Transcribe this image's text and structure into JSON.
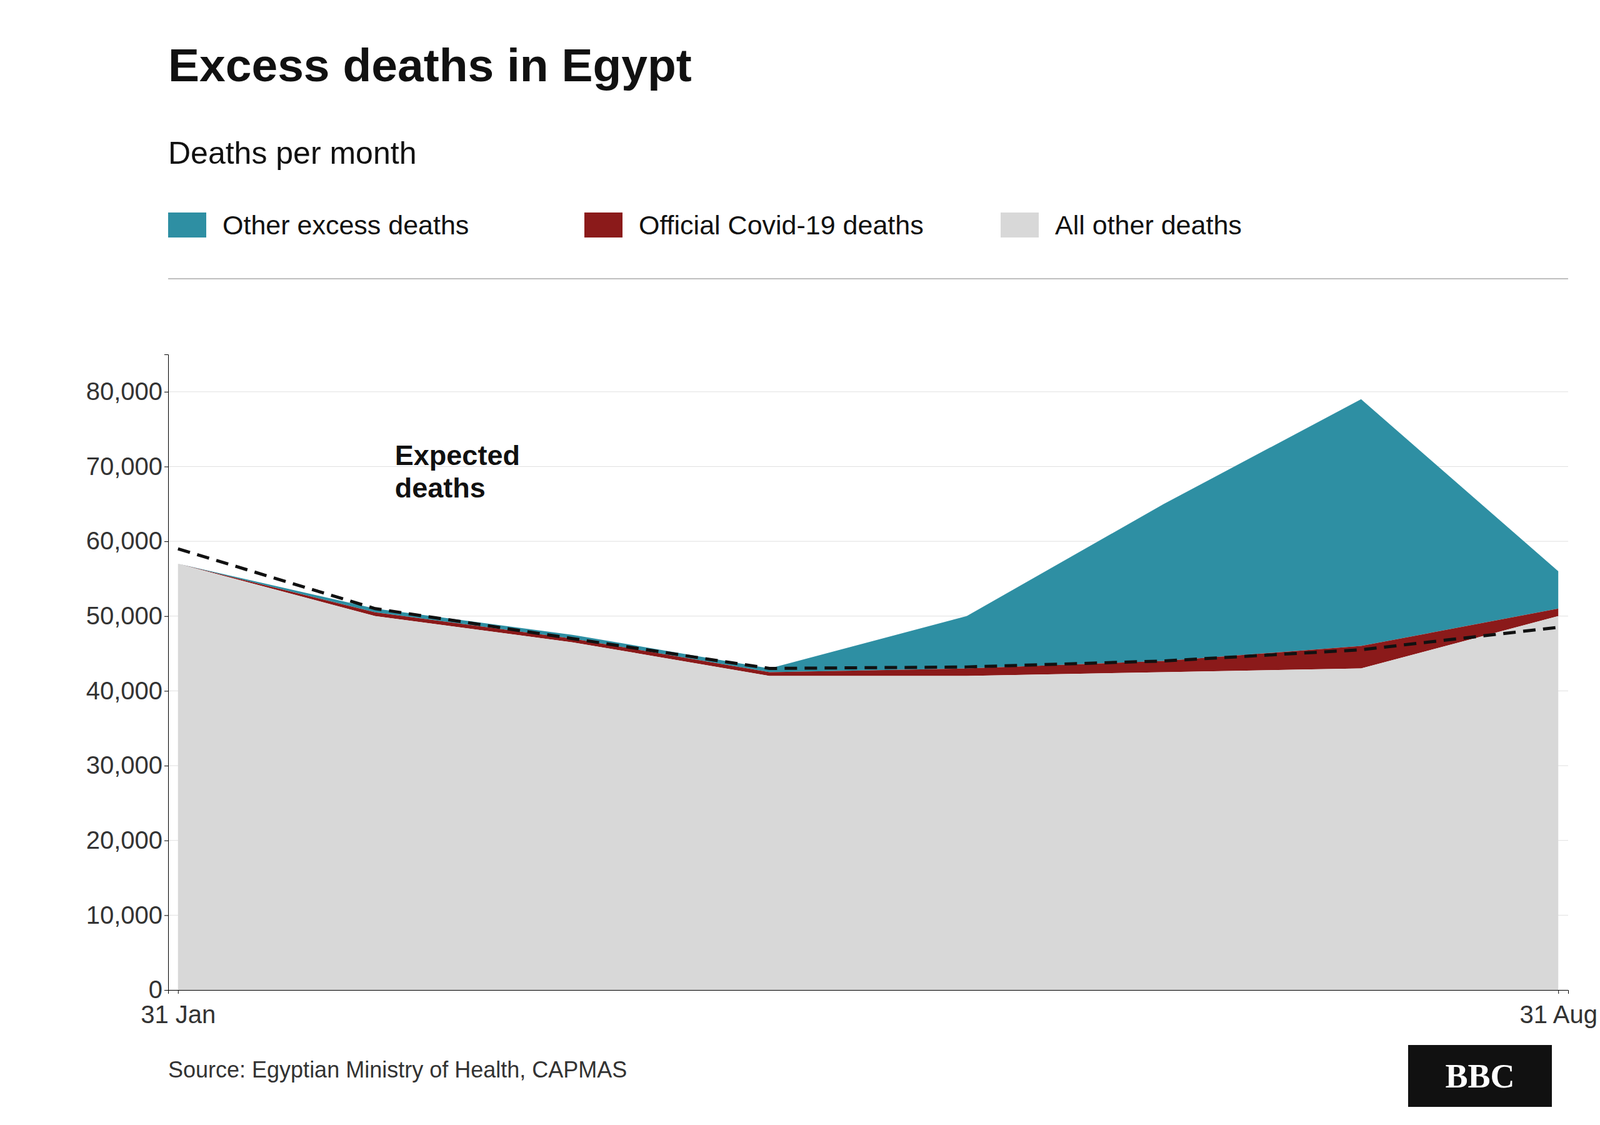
{
  "chart_data": {
    "type": "area",
    "stacked": true,
    "title": "Excess deaths in Egypt",
    "subtitle": "Deaths per month",
    "source": "Source: Egyptian Ministry of Health, CAPMAS",
    "logo": "BBC",
    "categories": [
      "31 Jan",
      null,
      null,
      null,
      null,
      null,
      null,
      "31 Aug"
    ],
    "series": [
      {
        "name": "Other excess deaths",
        "color": "#2e8fa3",
        "values": [
          0,
          500,
          500,
          500,
          7000,
          21000,
          33000,
          5000
        ]
      },
      {
        "name": "Official Covid-19 deaths",
        "color": "#8b1a1a",
        "values": [
          0,
          500,
          500,
          500,
          1000,
          1500,
          3000,
          1000
        ]
      },
      {
        "name": "All other deaths",
        "color": "#d8d8d8",
        "values": [
          57000,
          50000,
          46500,
          42000,
          42000,
          42500,
          43000,
          50000
        ]
      },
      {
        "type": "line",
        "line_style": "dashed",
        "color": "#111111",
        "values": [
          59000,
          51000,
          47000,
          43000,
          43200,
          44000,
          45500,
          48500
        ]
      }
    ],
    "annotations": [
      {
        "text": "Expected\ndeaths"
      }
    ],
    "ylim": [
      0,
      85000
    ],
    "yticks": [
      0,
      {
        "value": 10000,
        "label": "10,000"
      },
      {
        "value": 20000,
        "label": "20,000"
      },
      {
        "value": 30000,
        "label": "30,000"
      },
      {
        "value": 40000,
        "label": "40,000"
      },
      {
        "value": 50000,
        "label": "50,000"
      },
      {
        "value": 60000,
        "label": "60,000"
      },
      {
        "value": 70000,
        "label": "70,000"
      },
      {
        "value": 80000,
        "label": "80,000"
      }
    ],
    "grid": true,
    "legend": "top"
  }
}
